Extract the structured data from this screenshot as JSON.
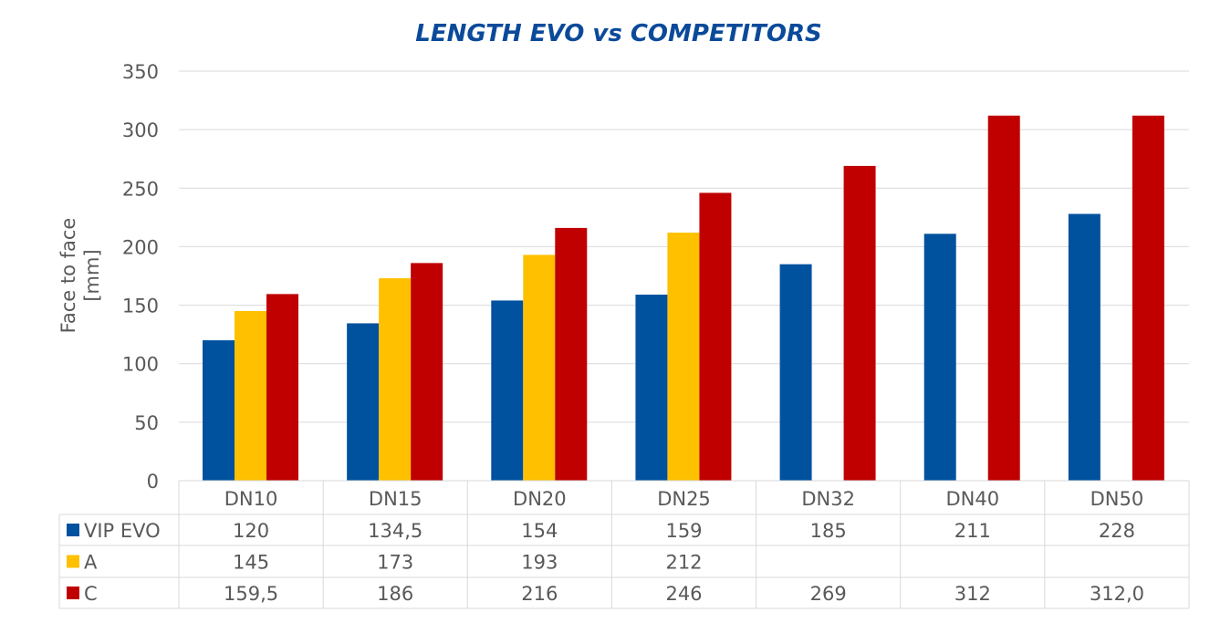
{
  "chart_data": {
    "type": "bar",
    "title": "LENGTH EVO vs COMPETITORS",
    "ylabel_lines": [
      "Face to face",
      "[mm]"
    ],
    "xlabel": "",
    "ylim": [
      0,
      350
    ],
    "yticks": [
      "0",
      "50",
      "100",
      "150",
      "200",
      "250",
      "300",
      "350"
    ],
    "ytick_values": [
      0,
      50,
      100,
      150,
      200,
      250,
      300,
      350
    ],
    "grid": true,
    "legend": "data-table",
    "categories": [
      "DN10",
      "DN15",
      "DN20",
      "DN25",
      "DN32",
      "DN40",
      "DN50"
    ],
    "series": [
      {
        "name": "VIP EVO",
        "color": "#00519E",
        "values": [
          120,
          134.5,
          154,
          159,
          185,
          211,
          228
        ],
        "labels": [
          "120",
          "134,5",
          "154",
          "159",
          "185",
          "211",
          "228"
        ]
      },
      {
        "name": "A",
        "color": "#FFC000",
        "values": [
          145,
          173,
          193,
          212,
          null,
          null,
          null
        ],
        "labels": [
          "145",
          "173",
          "193",
          "212",
          "",
          "",
          ""
        ]
      },
      {
        "name": "C",
        "color": "#C00000",
        "values": [
          159.5,
          186,
          216,
          246,
          269,
          312,
          312
        ],
        "labels": [
          "159,5",
          "186",
          "216",
          "246",
          "269",
          "312",
          "312,0"
        ]
      }
    ]
  },
  "colors": {
    "title": "#0B4A9A",
    "text": "#595959",
    "grid": "#D9D9D9"
  }
}
